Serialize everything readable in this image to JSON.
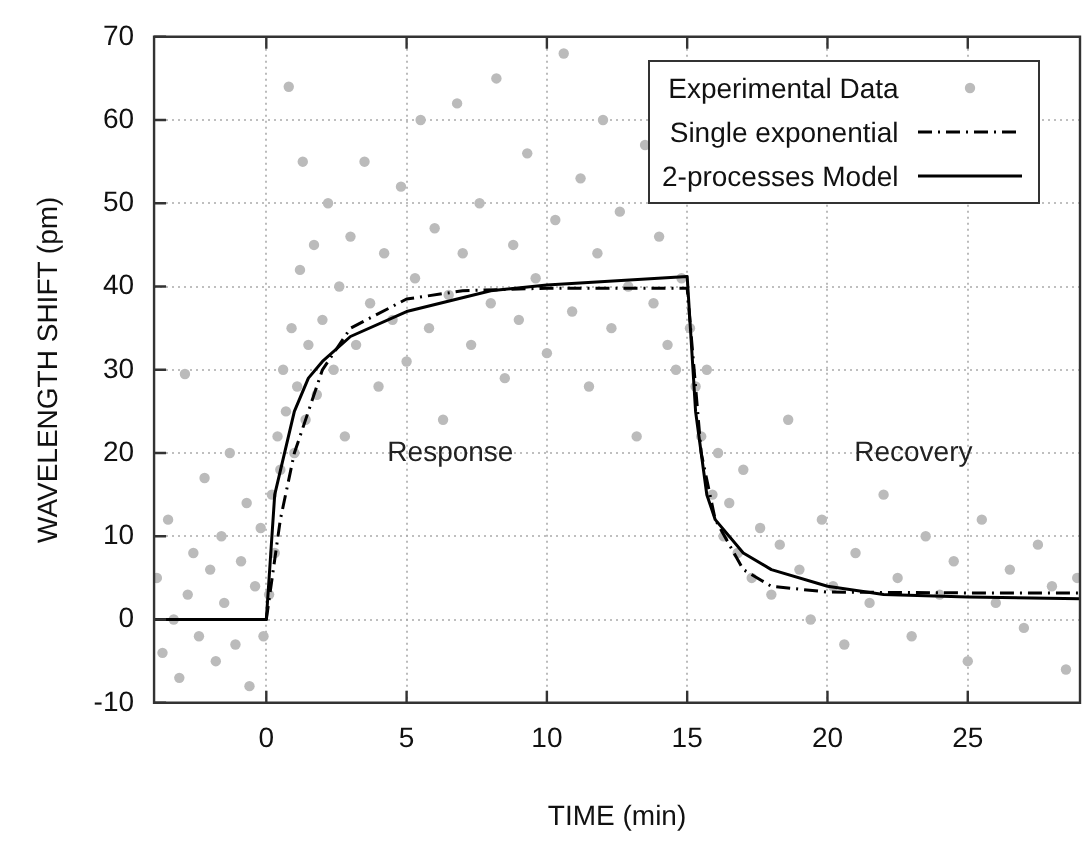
{
  "chart_data": {
    "type": "scatter",
    "xlabel": "TIME (min)",
    "ylabel": "WAVELENGTH SHIFT (pm)",
    "xlim": [
      -4,
      29
    ],
    "xticks": [
      0,
      5,
      10,
      15,
      20,
      25
    ],
    "ylim": [
      -10,
      70
    ],
    "yticks": [
      -10,
      0,
      10,
      20,
      30,
      40,
      50,
      60,
      70
    ],
    "grid": true,
    "legend": "top right",
    "annotations": [
      "Response",
      "Recovery"
    ],
    "series": [
      {
        "name": "Experimental Data",
        "type": "scatter",
        "color": "#bbbbbb",
        "marker": "circle",
        "x": [
          -3.9,
          -3.7,
          -3.5,
          -3.3,
          -3.1,
          -2.9,
          -2.8,
          -2.6,
          -2.4,
          -2.2,
          -2,
          -1.8,
          -1.6,
          -1.5,
          -1.3,
          -1.1,
          -0.9,
          -0.7,
          -0.6,
          -0.4,
          -0.2,
          -0.1,
          0.1,
          0.2,
          0.3,
          0.4,
          0.5,
          0.6,
          0.7,
          0.8,
          0.9,
          1,
          1.1,
          1.2,
          1.3,
          1.4,
          1.5,
          1.7,
          1.8,
          2,
          2.2,
          2.4,
          2.6,
          2.8,
          3,
          3.2,
          3.5,
          3.7,
          4,
          4.2,
          4.5,
          4.8,
          5,
          5.3,
          5.5,
          5.8,
          6,
          6.3,
          6.5,
          6.8,
          7,
          7.3,
          7.6,
          8,
          8.2,
          8.5,
          8.8,
          9,
          9.3,
          9.6,
          10,
          10.3,
          10.6,
          10.9,
          11.2,
          11.5,
          11.8,
          12,
          12.3,
          12.6,
          12.9,
          13.2,
          13.5,
          13.8,
          14,
          14.3,
          14.6,
          14.8,
          15.1,
          15.3,
          15.5,
          15.7,
          15.9,
          16.1,
          16.3,
          16.5,
          16.8,
          17,
          17.3,
          17.6,
          18,
          18.3,
          18.6,
          19,
          19.4,
          19.8,
          20.2,
          20.6,
          21,
          21.5,
          22,
          22.5,
          23,
          23.5,
          24,
          24.5,
          25,
          25.5,
          26,
          26.5,
          27,
          27.5,
          28,
          28.5,
          28.9
        ],
        "values": [
          5,
          -4,
          12,
          0,
          -7,
          29.5,
          3,
          8,
          -2,
          17,
          6,
          -5,
          10,
          2,
          20,
          -3,
          7,
          14,
          -8,
          4,
          11,
          -2,
          3,
          15,
          8,
          22,
          18,
          30,
          25,
          64,
          35,
          20,
          28,
          42,
          55,
          24,
          33,
          45,
          27,
          36,
          50,
          30,
          40,
          22,
          46,
          33,
          55,
          38,
          28,
          44,
          36,
          52,
          31,
          41,
          60,
          35,
          47,
          24,
          39,
          62,
          44,
          33,
          50,
          38,
          65,
          29,
          45,
          36,
          56,
          41,
          32,
          48,
          68,
          37,
          53,
          28,
          44,
          60,
          35,
          49,
          40,
          22,
          57,
          38,
          46,
          33,
          30,
          41,
          35,
          28,
          22,
          30,
          15,
          20,
          10,
          14,
          8,
          18,
          5,
          11,
          3,
          9,
          24,
          6,
          0,
          12,
          4,
          -3,
          8,
          2,
          15,
          5,
          -2,
          10,
          3,
          7,
          -5,
          12,
          2,
          6,
          -1,
          9,
          4,
          -6,
          5
        ]
      },
      {
        "name": "Single exponential",
        "type": "line",
        "color": "#000000",
        "line_style": "dashdot",
        "marker": "none",
        "x": [
          -4,
          0,
          0.5,
          1,
          2,
          3,
          5,
          7,
          10,
          15,
          15.5,
          16,
          17,
          18,
          20,
          25,
          29
        ],
        "values": [
          0,
          0,
          12,
          20,
          30,
          35,
          38.5,
          39.5,
          39.8,
          39.8,
          20,
          12,
          6,
          4,
          3.3,
          3.2,
          3.2
        ]
      },
      {
        "name": "2-processes Model",
        "type": "line",
        "color": "#000000",
        "line_style": "solid",
        "marker": "none",
        "x": [
          -4,
          0,
          0.3,
          1,
          1.5,
          2,
          3,
          5,
          8,
          10,
          15,
          15.3,
          15.7,
          16,
          17,
          18,
          20,
          22,
          25,
          29
        ],
        "values": [
          0,
          0,
          15,
          25,
          29,
          31,
          34,
          37,
          39.5,
          40.2,
          41.2,
          25,
          15,
          12,
          8,
          6,
          4,
          3,
          2.7,
          2.5
        ]
      }
    ]
  }
}
